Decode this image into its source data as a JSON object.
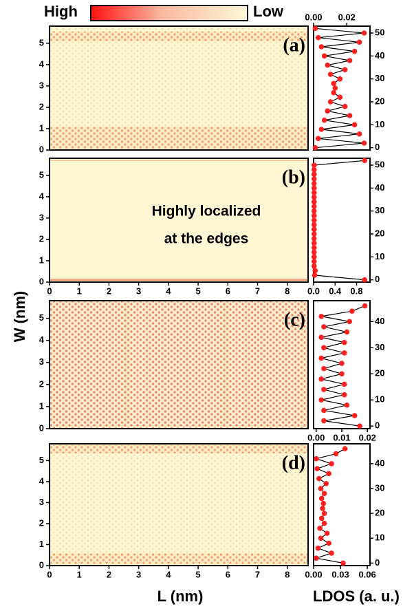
{
  "colorbar": {
    "high": "High",
    "low": "Low"
  },
  "x_label": "L (nm)",
  "y_label": "W (nm)",
  "ldos_label": "LDOS (a. u.)",
  "chart_data": [
    {
      "type": "heatmap",
      "label": "(a)",
      "xlim": [
        0,
        8.7
      ],
      "ylim": [
        0,
        5.8
      ],
      "yticks": [
        0,
        1,
        2,
        3,
        4,
        5
      ]
    },
    {
      "type": "line",
      "color": "#ff2020",
      "line_color": "#000000",
      "xaxis": "top",
      "sites": [
        0,
        2,
        4,
        6,
        8,
        10,
        12,
        14,
        16,
        18,
        20,
        22,
        24,
        26,
        28,
        30,
        32,
        34,
        36,
        38,
        40,
        42,
        44,
        46,
        48,
        50,
        52
      ],
      "values": [
        0.001,
        0.0305,
        0.0028,
        0.0276,
        0.0047,
        0.0247,
        0.0065,
        0.0218,
        0.0084,
        0.0189,
        0.0102,
        0.0159,
        0.0121,
        0.013,
        0.0121,
        0.0159,
        0.0102,
        0.0189,
        0.0084,
        0.0218,
        0.0065,
        0.0247,
        0.0047,
        0.0276,
        0.0028,
        0.0305,
        0.001
      ],
      "xlim": [
        0,
        0.034
      ],
      "xticks": [
        {
          "value": 0,
          "label": "0.00"
        },
        0.02
      ],
      "ylim": [
        -1,
        53
      ],
      "yticks": [
        0,
        10,
        20,
        30,
        40,
        50
      ]
    },
    {
      "type": "heatmap",
      "label": "(b)",
      "xlim": [
        0,
        8.7
      ],
      "xticks": [
        0,
        1,
        2,
        3,
        4,
        5,
        6,
        7,
        8
      ],
      "ylim": [
        0,
        5.8
      ],
      "yticks": [
        0,
        1,
        2,
        3,
        4,
        5
      ],
      "annotations": [
        "Highly localized",
        "at the edges"
      ]
    },
    {
      "type": "line",
      "color": "#ff2020",
      "line_color": "#000000",
      "xaxis": "bottom",
      "sites": [
        0,
        2,
        4,
        6,
        8,
        10,
        12,
        14,
        16,
        18,
        20,
        22,
        24,
        26,
        28,
        30,
        32,
        34,
        36,
        38,
        40,
        42,
        44,
        46,
        48,
        50,
        52
      ],
      "values": [
        0.95,
        0.02,
        0.03,
        0.01,
        0.01,
        0.01,
        0.01,
        0.01,
        0.01,
        0.01,
        0.01,
        0.01,
        0.01,
        0.01,
        0.01,
        0.01,
        0.01,
        0.01,
        0.01,
        0.01,
        0.01,
        0.01,
        0.01,
        0.01,
        0.01,
        0.01,
        0.95
      ],
      "xlim": [
        0,
        1.05
      ],
      "xticks": [
        {
          "value": 0,
          "label": "0.0"
        },
        0.4,
        0.8
      ],
      "ylim": [
        -1,
        53
      ],
      "yticks": [
        0,
        10,
        20,
        30,
        40,
        50
      ]
    },
    {
      "type": "heatmap",
      "label": "(c)",
      "xlim": [
        0,
        8.7
      ],
      "ylim": [
        0,
        5.8
      ],
      "yticks": [
        0,
        1,
        2,
        3,
        4,
        5
      ]
    },
    {
      "type": "line",
      "color": "#ff2020",
      "line_color": "#000000",
      "xaxis": "bottom",
      "sites": [
        0,
        2,
        4,
        6,
        8,
        10,
        12,
        14,
        16,
        18,
        20,
        22,
        24,
        26,
        28,
        30,
        32,
        34,
        36,
        38,
        40,
        42,
        44,
        46
      ],
      "values": [
        0.017,
        0.003,
        0.015,
        0.003,
        0.012,
        0.002,
        0.011,
        0.003,
        0.011,
        0.002,
        0.01,
        0.003,
        0.01,
        0.002,
        0.011,
        0.003,
        0.011,
        0.002,
        0.012,
        0.003,
        0.013,
        0.002,
        0.014,
        0.019
      ],
      "xlim": [
        -0.001,
        0.021
      ],
      "xticks": [
        {
          "value": 0,
          "label": "0.00"
        },
        0.01,
        0.02
      ],
      "ylim": [
        -1,
        48
      ],
      "yticks": [
        0,
        10,
        20,
        30,
        40
      ]
    },
    {
      "type": "heatmap",
      "label": "(d)",
      "xlim": [
        0,
        8.7
      ],
      "xticks": [
        0,
        1,
        2,
        3,
        4,
        5,
        6,
        7,
        8
      ],
      "ylim": [
        0,
        5.8
      ],
      "yticks": [
        0,
        1,
        2,
        3,
        4,
        5
      ]
    },
    {
      "type": "line",
      "color": "#ff2020",
      "line_color": "#000000",
      "xaxis": "bottom",
      "sites": [
        0,
        2,
        4,
        6,
        8,
        10,
        12,
        14,
        16,
        18,
        20,
        22,
        24,
        26,
        28,
        30,
        32,
        34,
        36,
        38,
        40,
        42,
        44,
        46
      ],
      "values": [
        0.033,
        0.003,
        0.02,
        0.005,
        0.017,
        0.008,
        0.015,
        0.007,
        0.012,
        0.009,
        0.012,
        0.01,
        0.011,
        0.009,
        0.012,
        0.008,
        0.014,
        0.006,
        0.017,
        0.004,
        0.02,
        0.003,
        0.025,
        0.035
      ],
      "xlim": [
        0,
        0.063
      ],
      "xticks": [
        {
          "value": 0,
          "label": "0.00"
        },
        0.03,
        0.06
      ],
      "ylim": [
        -1,
        48
      ],
      "yticks": [
        0,
        10,
        20,
        30,
        40
      ]
    }
  ]
}
